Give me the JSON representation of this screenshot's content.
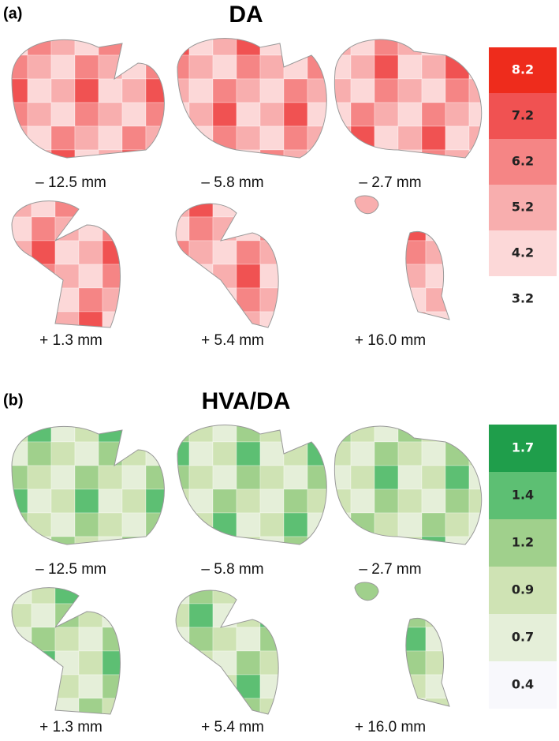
{
  "panels": [
    {
      "label": "(a)",
      "title": "DA",
      "slices": [
        "– 12.5 mm",
        "– 5.8 mm",
        "– 2.7 mm",
        "+ 1.3 mm",
        "+ 5.4 mm",
        "+ 16.0 mm"
      ],
      "legend": [
        8.2,
        7.2,
        6.2,
        5.2,
        4.2,
        3.2
      ]
    },
    {
      "label": "(b)",
      "title": "HVA/DA",
      "slices": [
        "– 12.5 mm",
        "– 5.8 mm",
        "– 2.7 mm",
        "+ 1.3 mm",
        "+ 5.4 mm",
        "+ 16.0 mm"
      ],
      "legend": [
        1.7,
        1.4,
        1.2,
        0.9,
        0.7,
        0.4
      ]
    }
  ]
}
